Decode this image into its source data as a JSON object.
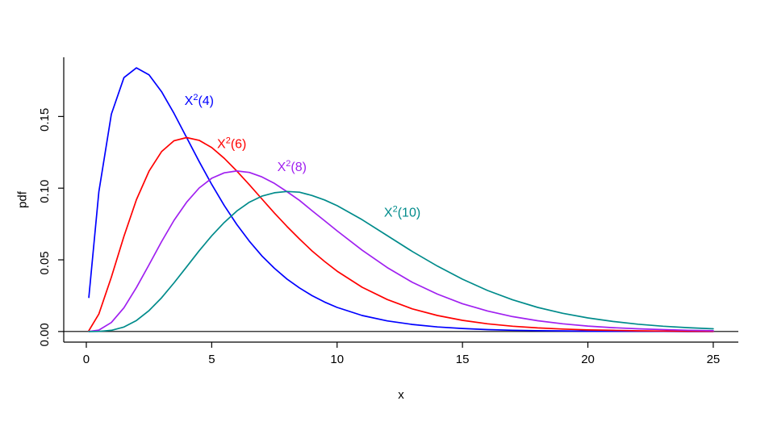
{
  "chart_data": {
    "type": "line",
    "title": "",
    "xlabel": "x",
    "ylabel": "pdf",
    "xlim": [
      -0.9,
      26.0
    ],
    "ylim": [
      -0.0074,
      0.1913
    ],
    "x_ticks": [
      0,
      5,
      10,
      15,
      20,
      25
    ],
    "y_ticks": [
      0,
      0.05,
      0.1,
      0.15
    ],
    "y_tick_labels": [
      "0.00",
      "0.05",
      "0.10",
      "0.15"
    ],
    "grid": false,
    "legend": "none",
    "hline": 0,
    "x": [
      0.1,
      0.5,
      1,
      1.5,
      2,
      2.5,
      3,
      3.5,
      4,
      4.5,
      5,
      5.5,
      6,
      6.5,
      7,
      7.5,
      8,
      8.5,
      9,
      9.5,
      10,
      11,
      12,
      13,
      14,
      15,
      16,
      17,
      18,
      19,
      20,
      21,
      22,
      23,
      24,
      25
    ],
    "series": [
      {
        "name": "X²(4)",
        "slug": "chi-squared-4",
        "color": "#0000FF",
        "values": [
          0.0238,
          0.0974,
          0.1516,
          0.1771,
          0.1839,
          0.1791,
          0.1673,
          0.1521,
          0.1353,
          0.1186,
          0.1026,
          0.0879,
          0.0747,
          0.063,
          0.0528,
          0.0441,
          0.0366,
          0.0304,
          0.025,
          0.0206,
          0.0168,
          0.0112,
          0.0074,
          0.0049,
          0.0032,
          0.0021,
          0.0013,
          0.0009,
          0.0006,
          0.0004,
          0.0002,
          0.0001,
          0.0001,
          0.0001,
          0.0,
          0.0
        ]
      },
      {
        "name": "X²(6)",
        "slug": "chi-squared-6",
        "color": "#FF0000",
        "values": [
          0.0006,
          0.0122,
          0.0379,
          0.0664,
          0.092,
          0.1119,
          0.1255,
          0.1331,
          0.1353,
          0.1334,
          0.1283,
          0.1208,
          0.112,
          0.1024,
          0.0925,
          0.0826,
          0.0733,
          0.0646,
          0.0562,
          0.0489,
          0.0421,
          0.0309,
          0.0223,
          0.0158,
          0.0112,
          0.0078,
          0.0054,
          0.0037,
          0.0025,
          0.0017,
          0.0011,
          0.0008,
          0.0005,
          0.0003,
          0.0002,
          0.0001
        ]
      },
      {
        "name": "X²(8)",
        "slug": "chi-squared-8",
        "color": "#A020F0",
        "values": [
          0.0,
          0.001,
          0.0063,
          0.0166,
          0.0307,
          0.0466,
          0.0627,
          0.0776,
          0.0902,
          0.1001,
          0.1069,
          0.1107,
          0.112,
          0.111,
          0.1079,
          0.1033,
          0.0976,
          0.0915,
          0.0843,
          0.0773,
          0.0702,
          0.0567,
          0.0446,
          0.0343,
          0.0261,
          0.0194,
          0.0143,
          0.0104,
          0.0075,
          0.0054,
          0.0038,
          0.0027,
          0.0019,
          0.0013,
          0.0009,
          0.0006
        ]
      },
      {
        "name": "X²(10)",
        "slug": "chi-squared-10",
        "color": "#008B8B",
        "values": [
          0.0,
          0.0001,
          0.0008,
          0.0031,
          0.0077,
          0.0146,
          0.0235,
          0.034,
          0.0451,
          0.0563,
          0.0668,
          0.0761,
          0.084,
          0.0902,
          0.0944,
          0.0968,
          0.0977,
          0.0972,
          0.0949,
          0.0918,
          0.0878,
          0.078,
          0.0669,
          0.0558,
          0.0456,
          0.0365,
          0.0286,
          0.0221,
          0.0168,
          0.0127,
          0.0095,
          0.007,
          0.0051,
          0.0037,
          0.0027,
          0.0019
        ]
      }
    ],
    "annotations": [
      {
        "text": "X²(4)",
        "slug": "chi-squared-4",
        "x": 4.5,
        "y": 0.158,
        "color": "#0000FF"
      },
      {
        "text": "X²(6)",
        "slug": "chi-squared-6",
        "x": 5.8,
        "y": 0.128,
        "color": "#FF0000"
      },
      {
        "text": "X²(8)",
        "slug": "chi-squared-8",
        "x": 8.2,
        "y": 0.112,
        "color": "#A020F0"
      },
      {
        "text": "X²(10)",
        "slug": "chi-squared-10",
        "x": 12.6,
        "y": 0.08,
        "color": "#008B8B"
      }
    ]
  }
}
